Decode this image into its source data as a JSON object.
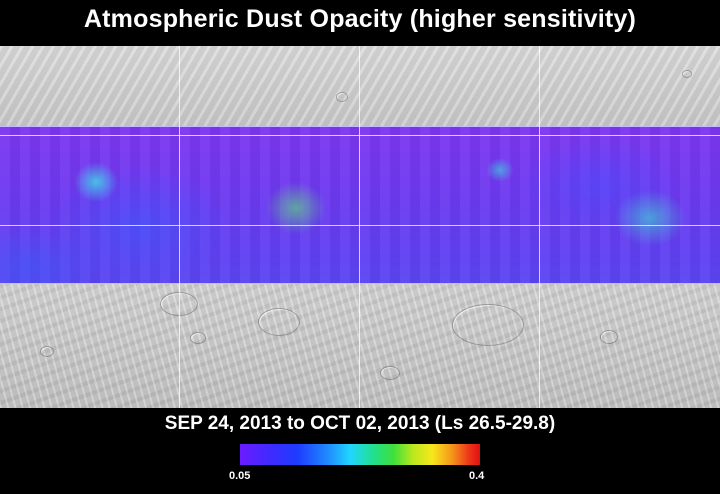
{
  "title": "Atmospheric Dust Opacity (higher sensitivity)",
  "date_range": "SEP 24, 2013 to OCT 02, 2013 (Ls 26.5-29.8)",
  "colorbar": {
    "min_label": "0.05",
    "max_label": "0.4",
    "colors": [
      "#6a1cff",
      "#1e3cff",
      "#21d6ff",
      "#3fe03a",
      "#f6e81c",
      "#ee3a1a",
      "#e01010"
    ]
  }
}
